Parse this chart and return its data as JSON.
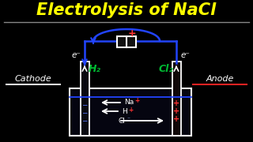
{
  "title": "Electrolysis of NaCl",
  "title_color": "#FFFF00",
  "bg_color": "#000000",
  "title_fontsize": 15,
  "cathode_label": "Cathode",
  "anode_label": "Anode",
  "h2_label": "H₂",
  "cl2_label": "Cl₂",
  "ion_plus_color": "#FF3333",
  "ion_minus_color": "#8888FF",
  "wire_color": "#2244FF",
  "white": "#FFFFFF",
  "green": "#00BB33",
  "red": "#FF3333",
  "light_blue": "#AACCFF",
  "cathode_line_color": "#DDDDDD",
  "anode_line_color": "#DD2222"
}
